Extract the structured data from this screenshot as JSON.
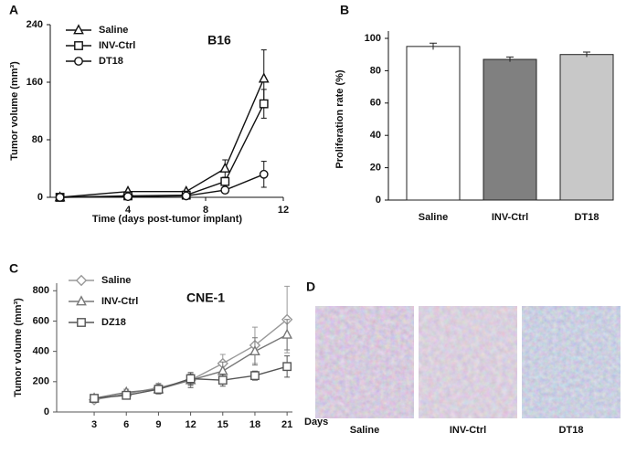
{
  "chart_data": [
    {
      "panel": "A",
      "type": "line",
      "title": "B16",
      "xlabel": "Time (days post-tumor implant)",
      "ylabel": "Tumor volume (mm³)",
      "x": [
        0.5,
        4,
        7,
        9,
        11
      ],
      "xlim": [
        0,
        12
      ],
      "xticks": [
        4,
        8,
        12
      ],
      "ylim": [
        0,
        240
      ],
      "yticks": [
        0,
        80,
        160,
        240
      ],
      "series": [
        {
          "name": "Saline",
          "color": "#111111",
          "marker": "triangle",
          "values": [
            0,
            8,
            8,
            40,
            165
          ],
          "errors": [
            null,
            null,
            null,
            12,
            40
          ]
        },
        {
          "name": "INV-Ctrl",
          "color": "#111111",
          "marker": "square",
          "values": [
            0,
            2,
            3,
            22,
            130
          ],
          "errors": [
            null,
            null,
            null,
            null,
            20
          ]
        },
        {
          "name": "DT18",
          "color": "#111111",
          "marker": "circle",
          "values": [
            0,
            1,
            2,
            10,
            32
          ],
          "errors": [
            null,
            null,
            null,
            null,
            18
          ]
        }
      ]
    },
    {
      "panel": "B",
      "type": "bar",
      "ylabel": "Proliferation rate (%)",
      "categories": [
        "Saline",
        "INV-Ctrl",
        "DT18"
      ],
      "values": [
        95,
        87,
        90
      ],
      "errors": [
        2,
        1.5,
        1.5
      ],
      "colors": [
        "#ffffff",
        "#808080",
        "#c8c8c8"
      ],
      "ylim": [
        0,
        100
      ],
      "yticks": [
        0,
        20,
        40,
        60,
        80,
        100
      ]
    },
    {
      "panel": "C",
      "type": "line",
      "title": "CNE-1",
      "xlabel": "Days",
      "ylabel": "Tumor volume (mm³)",
      "x": [
        3,
        6,
        9,
        12,
        15,
        18,
        21
      ],
      "xlim": [
        -0.5,
        21.5
      ],
      "xticks": [
        3,
        6,
        9,
        12,
        15,
        18,
        21
      ],
      "ylim": [
        0,
        850
      ],
      "yticks": [
        0,
        200,
        400,
        600,
        800
      ],
      "series": [
        {
          "name": "Saline",
          "color": "#999999",
          "marker": "diamond",
          "values": [
            80,
            120,
            160,
            210,
            320,
            440,
            610
          ],
          "errors": [
            20,
            20,
            30,
            40,
            60,
            120,
            220
          ]
        },
        {
          "name": "INV-Ctrl",
          "color": "#777777",
          "marker": "triangle",
          "values": [
            90,
            130,
            150,
            210,
            270,
            400,
            510
          ],
          "errors": [
            20,
            20,
            30,
            50,
            60,
            90,
            100
          ]
        },
        {
          "name": "DZ18",
          "color": "#555555",
          "marker": "square",
          "values": [
            90,
            110,
            150,
            220,
            210,
            240,
            300
          ],
          "errors": [
            20,
            20,
            30,
            40,
            40,
            30,
            70
          ]
        }
      ]
    },
    {
      "panel": "D",
      "type": "image",
      "labels": [
        "Saline",
        "INV-Ctrl",
        "DT18"
      ]
    }
  ]
}
